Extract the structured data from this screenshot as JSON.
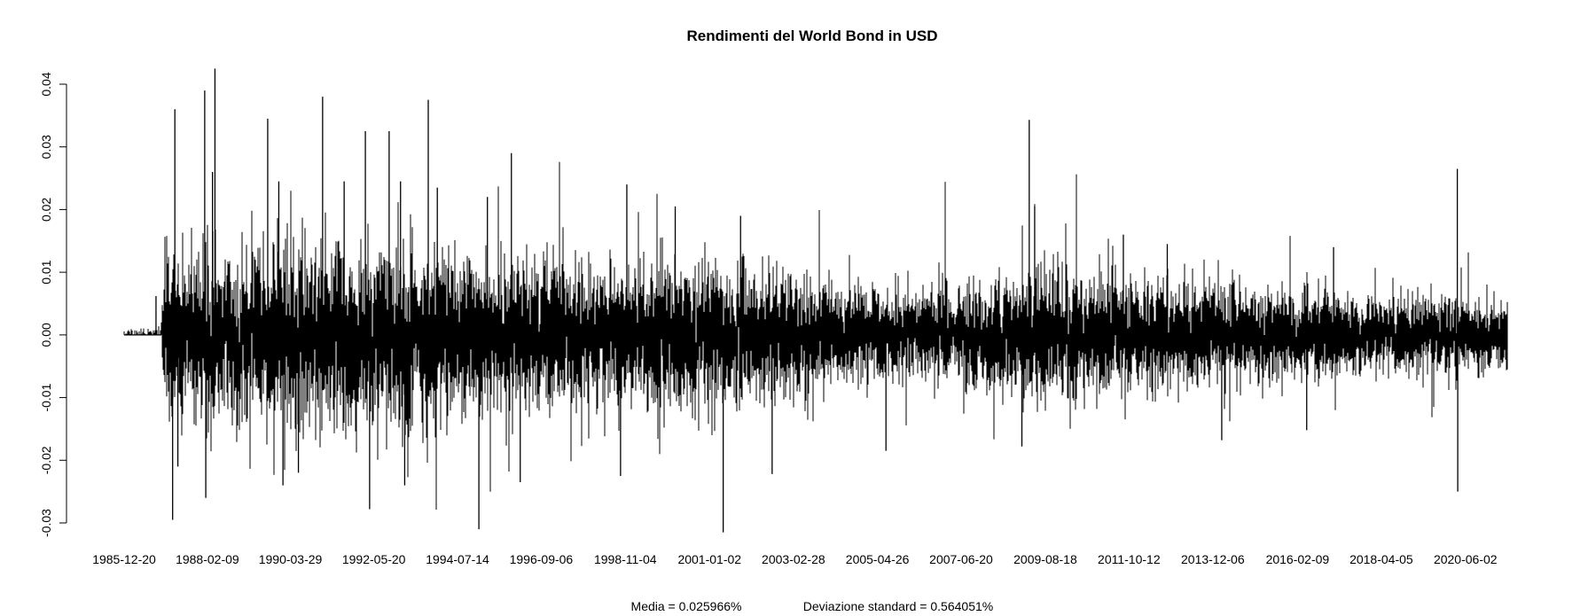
{
  "chart_data": {
    "type": "line",
    "title": "Rendimenti del World Bond in USD",
    "xlabel": "",
    "ylabel": "",
    "x_range": [
      "1985-12-20",
      "2021-06-30"
    ],
    "ylim": [
      -0.03,
      0.04
    ],
    "yticks": [
      {
        "value": -0.03,
        "label": "-0.03"
      },
      {
        "value": -0.02,
        "label": "-0.02"
      },
      {
        "value": -0.01,
        "label": "-0.01"
      },
      {
        "value": 0.0,
        "label": "0.00"
      },
      {
        "value": 0.01,
        "label": "0.01"
      },
      {
        "value": 0.02,
        "label": "0.02"
      },
      {
        "value": 0.03,
        "label": "0.03"
      },
      {
        "value": 0.04,
        "label": "0.04"
      }
    ],
    "xticks": [
      "1985-12-20",
      "1988-02-09",
      "1990-03-29",
      "1992-05-20",
      "1994-07-14",
      "1996-09-06",
      "1998-11-04",
      "2001-01-02",
      "2003-02-28",
      "2005-04-26",
      "2007-06-20",
      "2009-08-18",
      "2011-10-12",
      "2013-12-06",
      "2016-02-09",
      "2018-04-05",
      "2020-06-02"
    ],
    "series": [
      {
        "values_note": "",
        "line_color": "#000000",
        "volatility_envelope": [
          {
            "date": "1985-12-20",
            "sd": 0.0006
          },
          {
            "date": "1986-12-01",
            "sd": 0.0008
          },
          {
            "date": "1987-01-05",
            "sd": 0.0062
          },
          {
            "date": "1988-02-09",
            "sd": 0.0064
          },
          {
            "date": "1990-03-29",
            "sd": 0.0066
          },
          {
            "date": "1992-05-20",
            "sd": 0.0068
          },
          {
            "date": "1993-06-30",
            "sd": 0.0062
          },
          {
            "date": "1994-07-14",
            "sd": 0.0058
          },
          {
            "date": "1996-09-06",
            "sd": 0.0052
          },
          {
            "date": "1998-11-04",
            "sd": 0.0052
          },
          {
            "date": "2001-01-02",
            "sd": 0.0055
          },
          {
            "date": "2003-02-28",
            "sd": 0.0042
          },
          {
            "date": "2005-04-26",
            "sd": 0.0032
          },
          {
            "date": "2007-06-20",
            "sd": 0.0036
          },
          {
            "date": "2009-08-18",
            "sd": 0.0048
          },
          {
            "date": "2011-10-12",
            "sd": 0.0042
          },
          {
            "date": "2013-12-06",
            "sd": 0.0037
          },
          {
            "date": "2016-02-09",
            "sd": 0.0032
          },
          {
            "date": "2018-04-05",
            "sd": 0.0027
          },
          {
            "date": "2020-06-02",
            "sd": 0.003
          },
          {
            "date": "2021-06-30",
            "sd": 0.0026
          }
        ],
        "spikes": [
          {
            "date": "1986-10-15",
            "value": 0.0062
          },
          {
            "date": "1987-04-10",
            "value": 0.036
          },
          {
            "date": "1987-03-20",
            "value": -0.0295
          },
          {
            "date": "1987-05-08",
            "value": -0.021
          },
          {
            "date": "1988-01-15",
            "value": 0.039
          },
          {
            "date": "1988-01-25",
            "value": -0.026
          },
          {
            "date": "1988-04-20",
            "value": 0.0425
          },
          {
            "date": "1988-03-28",
            "value": 0.026
          },
          {
            "date": "1989-08-28",
            "value": 0.0345
          },
          {
            "date": "1989-12-10",
            "value": 0.0245
          },
          {
            "date": "1990-01-18",
            "value": -0.024
          },
          {
            "date": "1990-06-12",
            "value": -0.022
          },
          {
            "date": "1991-01-25",
            "value": 0.038
          },
          {
            "date": "1991-08-15",
            "value": 0.0245
          },
          {
            "date": "1992-03-01",
            "value": 0.0325
          },
          {
            "date": "1992-04-10",
            "value": -0.0278
          },
          {
            "date": "1992-10-10",
            "value": 0.0325
          },
          {
            "date": "1993-01-25",
            "value": 0.0245
          },
          {
            "date": "1993-03-05",
            "value": -0.024
          },
          {
            "date": "1993-10-12",
            "value": 0.0375
          },
          {
            "date": "1994-01-05",
            "value": 0.0235
          },
          {
            "date": "1995-01-30",
            "value": -0.031
          },
          {
            "date": "1995-04-20",
            "value": 0.022
          },
          {
            "date": "1995-12-01",
            "value": 0.029
          },
          {
            "date": "1996-02-22",
            "value": -0.0235
          },
          {
            "date": "1998-11-18",
            "value": 0.024
          },
          {
            "date": "1998-09-20",
            "value": -0.0225
          },
          {
            "date": "2000-02-15",
            "value": 0.0205
          },
          {
            "date": "2001-05-10",
            "value": -0.0315
          },
          {
            "date": "2001-10-20",
            "value": 0.019
          },
          {
            "date": "2002-08-12",
            "value": -0.0222
          },
          {
            "date": "2005-07-15",
            "value": -0.0185
          },
          {
            "date": "2009-05-10",
            "value": 0.0205
          },
          {
            "date": "2009-03-20",
            "value": 0.0343
          },
          {
            "date": "2009-01-10",
            "value": -0.0178
          },
          {
            "date": "2011-08-20",
            "value": 0.016
          },
          {
            "date": "2012-10-05",
            "value": 0.0145
          },
          {
            "date": "2014-02-28",
            "value": -0.0168
          },
          {
            "date": "2016-05-05",
            "value": -0.0152
          },
          {
            "date": "2017-01-12",
            "value": 0.014
          },
          {
            "date": "2020-03-18",
            "value": 0.0265
          },
          {
            "date": "2020-03-22",
            "value": -0.025
          }
        ]
      }
    ]
  },
  "footer": {
    "mean_text": "Media = 0.025966%",
    "sd_text": "Deviazione standard = 0.564051%"
  }
}
